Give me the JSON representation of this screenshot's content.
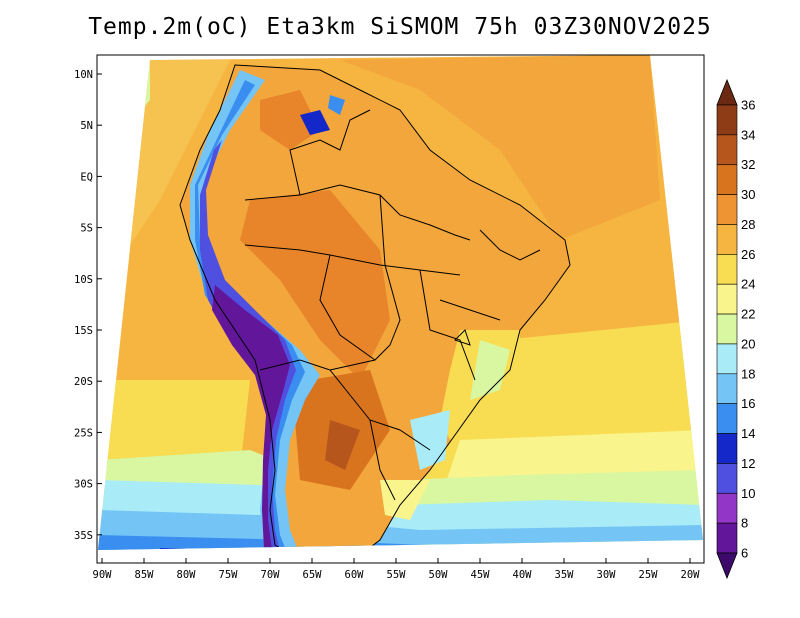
{
  "title": "Temp.2m(oC) Eta3km SiSMOM 75h 03Z30NOV2025",
  "map": {
    "lat_labels": [
      "10N",
      "5N",
      "EQ",
      "5S",
      "10S",
      "15S",
      "20S",
      "25S",
      "30S",
      "35S"
    ],
    "lon_labels": [
      "90W",
      "85W",
      "80W",
      "75W",
      "70W",
      "65W",
      "60W",
      "55W",
      "50W",
      "45W",
      "40W",
      "35W",
      "30W",
      "25W",
      "20W"
    ],
    "lat_range": [
      10,
      -37
    ],
    "lon_range": [
      -90,
      -20
    ]
  },
  "colorbar": {
    "labels": [
      "36",
      "34",
      "32",
      "30",
      "28",
      "26",
      "24",
      "22",
      "20",
      "18",
      "16",
      "14",
      "12",
      "10",
      "8",
      "6"
    ],
    "colors": [
      "#6b2812",
      "#8e3c16",
      "#b7561c",
      "#d8731e",
      "#ef9433",
      "#f6b540",
      "#f8dc52",
      "#f9f48c",
      "#d8f7a0",
      "#a9ecf8",
      "#74c5f5",
      "#3a8ef0",
      "#1427c8",
      "#5050e0",
      "#9236c7",
      "#62169a",
      "#3d0a6b"
    ]
  }
}
